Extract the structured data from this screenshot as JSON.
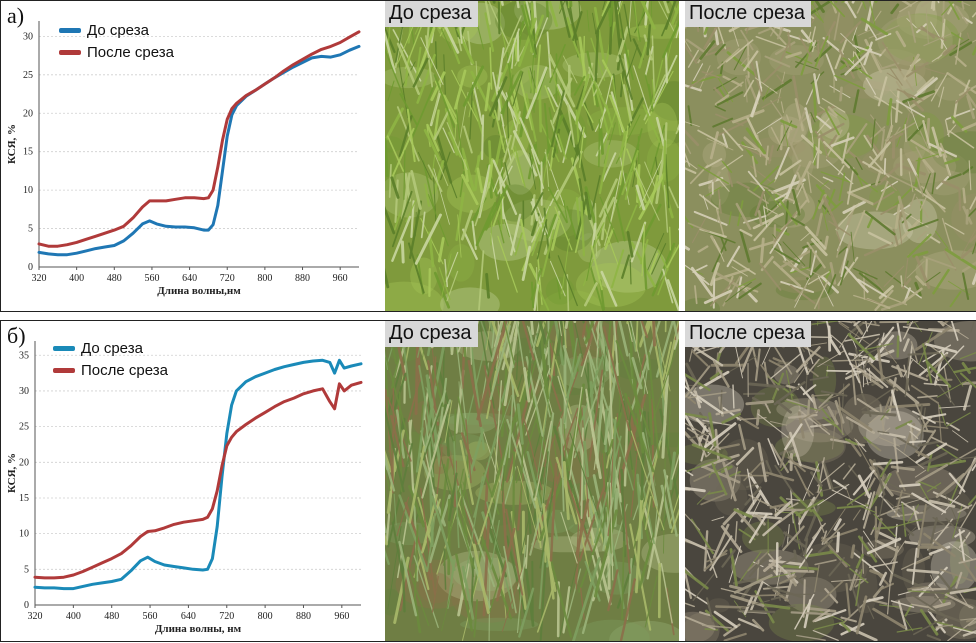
{
  "panels": [
    {
      "letter": "а)",
      "photo_before_label": "До среза",
      "photo_after_label": "После среза",
      "chart_data": {
        "type": "line",
        "xlabel": "Длина волны,нм",
        "ylabel": "КСЯ, %",
        "xlim": [
          320,
          1000
        ],
        "ylim": [
          0,
          32
        ],
        "xticks": [
          320,
          400,
          480,
          560,
          640,
          720,
          800,
          880,
          960
        ],
        "yticks": [
          0,
          5,
          10,
          15,
          20,
          25,
          30
        ],
        "series": [
          {
            "name": "До среза",
            "color": "#1f77b4",
            "x": [
              320,
              340,
              360,
              380,
              400,
              420,
              440,
              460,
              480,
              500,
              520,
              540,
              555,
              570,
              590,
              610,
              630,
              650,
              670,
              680,
              690,
              700,
              710,
              720,
              730,
              740,
              760,
              780,
              800,
              820,
              840,
              860,
              880,
              900,
              920,
              940,
              960,
              980,
              1000
            ],
            "y": [
              1.9,
              1.7,
              1.6,
              1.6,
              1.8,
              2.1,
              2.4,
              2.6,
              2.8,
              3.4,
              4.4,
              5.6,
              6.0,
              5.6,
              5.3,
              5.2,
              5.2,
              5.1,
              4.8,
              4.8,
              5.5,
              8.0,
              12.5,
              17.0,
              19.8,
              21.0,
              22.2,
              23.0,
              23.8,
              24.6,
              25.3,
              26.0,
              26.6,
              27.2,
              27.4,
              27.3,
              27.6,
              28.2,
              28.7
            ]
          },
          {
            "name": "После среза",
            "color": "#b03a3a",
            "x": [
              320,
              340,
              360,
              380,
              400,
              420,
              440,
              460,
              480,
              500,
              520,
              540,
              555,
              570,
              590,
              610,
              630,
              650,
              670,
              680,
              690,
              700,
              710,
              720,
              730,
              740,
              760,
              780,
              800,
              820,
              840,
              860,
              880,
              900,
              920,
              940,
              960,
              980,
              1000
            ],
            "y": [
              3.0,
              2.7,
              2.7,
              2.9,
              3.2,
              3.6,
              4.0,
              4.4,
              4.8,
              5.3,
              6.4,
              7.8,
              8.6,
              8.6,
              8.6,
              8.8,
              9.0,
              9.0,
              8.9,
              9.0,
              10.0,
              13.0,
              16.5,
              19.2,
              20.6,
              21.3,
              22.3,
              23.0,
              23.8,
              24.6,
              25.5,
              26.3,
              27.0,
              27.7,
              28.3,
              28.7,
              29.2,
              29.9,
              30.6
            ]
          }
        ]
      }
    },
    {
      "letter": "б)",
      "photo_before_label": "До среза",
      "photo_after_label": "После среза",
      "chart_data": {
        "type": "line",
        "xlabel": "Длина волны, нм",
        "ylabel": "КСЯ, %",
        "xlim": [
          320,
          1000
        ],
        "ylim": [
          0,
          37
        ],
        "xticks": [
          320,
          400,
          480,
          560,
          640,
          720,
          800,
          880,
          960
        ],
        "yticks": [
          0,
          5,
          10,
          15,
          20,
          25,
          30,
          35
        ],
        "series": [
          {
            "name": "До среза",
            "color": "#1a8ab8",
            "x": [
              320,
              340,
              360,
              380,
              400,
              420,
              440,
              460,
              480,
              500,
              520,
              540,
              555,
              570,
              590,
              610,
              630,
              650,
              670,
              680,
              690,
              700,
              710,
              720,
              730,
              740,
              760,
              780,
              800,
              820,
              840,
              860,
              880,
              900,
              920,
              935,
              945,
              955,
              965,
              980,
              1000
            ],
            "y": [
              2.5,
              2.4,
              2.4,
              2.3,
              2.3,
              2.6,
              2.9,
              3.1,
              3.3,
              3.6,
              4.8,
              6.2,
              6.7,
              6.1,
              5.6,
              5.4,
              5.2,
              5.0,
              4.9,
              5.0,
              6.5,
              11.0,
              18.0,
              24.0,
              28.0,
              30.0,
              31.3,
              32.0,
              32.5,
              33.0,
              33.4,
              33.7,
              34.0,
              34.2,
              34.3,
              34.0,
              32.5,
              34.3,
              33.2,
              33.5,
              33.8
            ]
          },
          {
            "name": "После среза",
            "color": "#b03a3a",
            "x": [
              320,
              340,
              360,
              380,
              400,
              420,
              440,
              460,
              480,
              500,
              520,
              540,
              555,
              570,
              590,
              610,
              630,
              650,
              670,
              680,
              690,
              700,
              710,
              720,
              730,
              740,
              760,
              780,
              800,
              820,
              840,
              860,
              880,
              900,
              920,
              935,
              945,
              955,
              965,
              980,
              1000
            ],
            "y": [
              3.9,
              3.8,
              3.8,
              3.9,
              4.2,
              4.7,
              5.3,
              5.9,
              6.5,
              7.2,
              8.3,
              9.6,
              10.3,
              10.4,
              10.8,
              11.3,
              11.6,
              11.8,
              12.0,
              12.3,
              13.5,
              16.0,
              19.5,
              22.3,
              23.5,
              24.3,
              25.3,
              26.2,
              27.0,
              27.8,
              28.5,
              29.0,
              29.6,
              30.0,
              30.3,
              28.5,
              27.5,
              31.0,
              30.0,
              30.8,
              31.2
            ]
          }
        ]
      }
    }
  ]
}
